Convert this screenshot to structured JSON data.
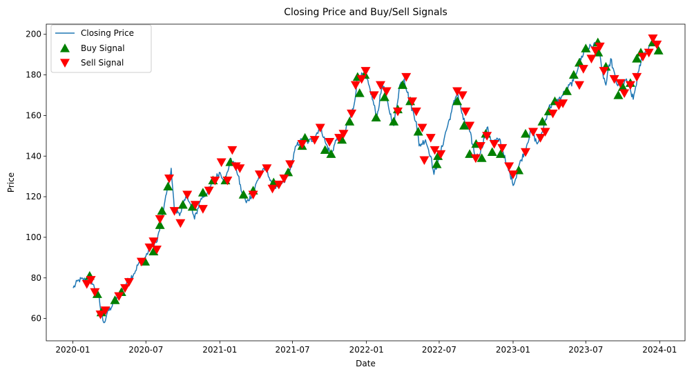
{
  "chart_data": {
    "type": "line",
    "title": "Closing Price and Buy/Sell Signals",
    "xlabel": "Date",
    "ylabel": "Price",
    "xlim": [
      "2019-10-27",
      "2024-03-04"
    ],
    "ylim": [
      49,
      205
    ],
    "x_ticks": [
      "2020-01",
      "2020-07",
      "2021-01",
      "2021-07",
      "2022-01",
      "2022-07",
      "2023-01",
      "2023-07",
      "2024-01"
    ],
    "y_ticks": [
      60,
      80,
      100,
      120,
      140,
      160,
      180,
      200
    ],
    "grid": false,
    "legend_position": "top-left",
    "colors": {
      "line": "#1f77b4",
      "buy": "#008000",
      "sell": "#ff0000"
    },
    "series": [
      {
        "name": "Closing Price",
        "kind": "line",
        "points": [
          [
            "2020-01-02",
            75
          ],
          [
            "2020-01-16",
            79
          ],
          [
            "2020-02-01",
            79
          ],
          [
            "2020-02-12",
            81
          ],
          [
            "2020-02-24",
            75
          ],
          [
            "2020-03-05",
            72
          ],
          [
            "2020-03-12",
            62
          ],
          [
            "2020-03-20",
            58
          ],
          [
            "2020-03-27",
            63
          ],
          [
            "2020-04-08",
            66
          ],
          [
            "2020-04-20",
            70
          ],
          [
            "2020-05-01",
            73
          ],
          [
            "2020-05-15",
            78
          ],
          [
            "2020-06-01",
            82
          ],
          [
            "2020-06-15",
            88
          ],
          [
            "2020-06-29",
            90
          ],
          [
            "2020-07-15",
            96
          ],
          [
            "2020-07-29",
            98
          ],
          [
            "2020-08-10",
            110
          ],
          [
            "2020-08-25",
            125
          ],
          [
            "2020-09-02",
            134
          ],
          [
            "2020-09-10",
            113
          ],
          [
            "2020-09-25",
            112
          ],
          [
            "2020-10-12",
            121
          ],
          [
            "2020-10-30",
            109
          ],
          [
            "2020-11-15",
            119
          ],
          [
            "2020-12-01",
            122
          ],
          [
            "2020-12-15",
            127
          ],
          [
            "2020-12-31",
            132
          ],
          [
            "2021-01-15",
            128
          ],
          [
            "2021-01-27",
            138
          ],
          [
            "2021-02-10",
            135
          ],
          [
            "2021-02-25",
            122
          ],
          [
            "2021-03-08",
            117
          ],
          [
            "2021-03-25",
            122
          ],
          [
            "2021-04-10",
            131
          ],
          [
            "2021-04-28",
            134
          ],
          [
            "2021-05-12",
            124
          ],
          [
            "2021-05-28",
            126
          ],
          [
            "2021-06-10",
            127
          ],
          [
            "2021-06-25",
            133
          ],
          [
            "2021-07-10",
            145
          ],
          [
            "2021-07-25",
            148
          ],
          [
            "2021-08-10",
            147
          ],
          [
            "2021-08-25",
            149
          ],
          [
            "2021-09-08",
            155
          ],
          [
            "2021-09-22",
            146
          ],
          [
            "2021-10-05",
            141
          ],
          [
            "2021-10-20",
            149
          ],
          [
            "2021-11-05",
            150
          ],
          [
            "2021-11-20",
            158
          ],
          [
            "2021-12-01",
            165
          ],
          [
            "2021-12-10",
            179
          ],
          [
            "2021-12-28",
            180
          ],
          [
            "2022-01-10",
            173
          ],
          [
            "2022-01-27",
            159
          ],
          [
            "2022-02-10",
            176
          ],
          [
            "2022-02-25",
            164
          ],
          [
            "2022-03-10",
            155
          ],
          [
            "2022-03-25",
            175
          ],
          [
            "2022-04-05",
            178
          ],
          [
            "2022-04-20",
            166
          ],
          [
            "2022-05-05",
            157
          ],
          [
            "2022-05-12",
            145
          ],
          [
            "2022-05-28",
            148
          ],
          [
            "2022-06-10",
            140
          ],
          [
            "2022-06-18",
            131
          ],
          [
            "2022-07-01",
            139
          ],
          [
            "2022-07-15",
            150
          ],
          [
            "2022-08-01",
            162
          ],
          [
            "2022-08-15",
            172
          ],
          [
            "2022-08-30",
            158
          ],
          [
            "2022-09-15",
            152
          ],
          [
            "2022-09-30",
            139
          ],
          [
            "2022-10-12",
            142
          ],
          [
            "2022-10-28",
            154
          ],
          [
            "2022-11-10",
            147
          ],
          [
            "2022-11-30",
            148
          ],
          [
            "2022-12-15",
            136
          ],
          [
            "2023-01-03",
            126
          ],
          [
            "2023-01-15",
            135
          ],
          [
            "2023-01-31",
            143
          ],
          [
            "2023-02-15",
            153
          ],
          [
            "2023-03-02",
            146
          ],
          [
            "2023-03-15",
            152
          ],
          [
            "2023-03-31",
            164
          ],
          [
            "2023-04-15",
            166
          ],
          [
            "2023-05-01",
            169
          ],
          [
            "2023-05-15",
            173
          ],
          [
            "2023-05-31",
            177
          ],
          [
            "2023-06-15",
            186
          ],
          [
            "2023-06-30",
            193
          ],
          [
            "2023-07-15",
            194
          ],
          [
            "2023-07-31",
            196
          ],
          [
            "2023-08-10",
            182
          ],
          [
            "2023-08-20",
            175
          ],
          [
            "2023-09-01",
            188
          ],
          [
            "2023-09-15",
            176
          ],
          [
            "2023-09-30",
            173
          ],
          [
            "2023-10-10",
            178
          ],
          [
            "2023-10-27",
            168
          ],
          [
            "2023-11-10",
            182
          ],
          [
            "2023-11-20",
            190
          ],
          [
            "2023-12-01",
            192
          ],
          [
            "2023-12-15",
            198
          ],
          [
            "2023-12-29",
            193
          ]
        ]
      },
      {
        "name": "Buy Signal",
        "kind": "marker-up",
        "points": [
          [
            "2020-02-12",
            81
          ],
          [
            "2020-03-02",
            72
          ],
          [
            "2020-03-12",
            63
          ],
          [
            "2020-04-15",
            69
          ],
          [
            "2020-05-01",
            73
          ],
          [
            "2020-06-29",
            88
          ],
          [
            "2020-07-20",
            93
          ],
          [
            "2020-08-05",
            106
          ],
          [
            "2020-08-10",
            113
          ],
          [
            "2020-08-25",
            125
          ],
          [
            "2020-10-01",
            116
          ],
          [
            "2020-10-25",
            115
          ],
          [
            "2020-11-20",
            122
          ],
          [
            "2020-12-15",
            128
          ],
          [
            "2021-01-15",
            128
          ],
          [
            "2021-01-27",
            137
          ],
          [
            "2021-03-01",
            121
          ],
          [
            "2021-03-25",
            123
          ],
          [
            "2021-05-15",
            127
          ],
          [
            "2021-06-20",
            132
          ],
          [
            "2021-07-25",
            145
          ],
          [
            "2021-08-01",
            149
          ],
          [
            "2021-09-20",
            143
          ],
          [
            "2021-10-05",
            141
          ],
          [
            "2021-11-01",
            148
          ],
          [
            "2021-11-20",
            157
          ],
          [
            "2021-12-10",
            179
          ],
          [
            "2021-12-15",
            171
          ],
          [
            "2021-12-28",
            180
          ],
          [
            "2022-01-25",
            159
          ],
          [
            "2022-02-15",
            169
          ],
          [
            "2022-03-10",
            157
          ],
          [
            "2022-03-20",
            163
          ],
          [
            "2022-04-01",
            175
          ],
          [
            "2022-04-20",
            167
          ],
          [
            "2022-05-10",
            152
          ],
          [
            "2022-06-25",
            136
          ],
          [
            "2022-06-28",
            140
          ],
          [
            "2022-08-15",
            167
          ],
          [
            "2022-09-01",
            155
          ],
          [
            "2022-09-15",
            141
          ],
          [
            "2022-10-01",
            146
          ],
          [
            "2022-10-15",
            139
          ],
          [
            "2022-10-25",
            151
          ],
          [
            "2022-11-10",
            142
          ],
          [
            "2022-12-01",
            141
          ],
          [
            "2023-01-15",
            133
          ],
          [
            "2023-02-01",
            151
          ],
          [
            "2023-03-15",
            157
          ],
          [
            "2023-03-31",
            162
          ],
          [
            "2023-04-15",
            167
          ],
          [
            "2023-05-15",
            172
          ],
          [
            "2023-06-01",
            180
          ],
          [
            "2023-06-15",
            186
          ],
          [
            "2023-07-01",
            193
          ],
          [
            "2023-07-31",
            196
          ],
          [
            "2023-08-01",
            191
          ],
          [
            "2023-08-20",
            184
          ],
          [
            "2023-09-20",
            170
          ],
          [
            "2023-10-01",
            174
          ],
          [
            "2023-10-20",
            176
          ],
          [
            "2023-11-05",
            188
          ],
          [
            "2023-11-15",
            191
          ],
          [
            "2023-12-15",
            196
          ],
          [
            "2023-12-29",
            192
          ]
        ]
      },
      {
        "name": "Sell Signal",
        "kind": "marker-down",
        "points": [
          [
            "2020-02-05",
            77
          ],
          [
            "2020-02-15",
            79
          ],
          [
            "2020-02-25",
            73
          ],
          [
            "2020-03-10",
            62
          ],
          [
            "2020-03-22",
            64
          ],
          [
            "2020-04-25",
            71
          ],
          [
            "2020-05-10",
            75
          ],
          [
            "2020-05-20",
            78
          ],
          [
            "2020-06-20",
            88
          ],
          [
            "2020-07-10",
            95
          ],
          [
            "2020-07-20",
            98
          ],
          [
            "2020-07-28",
            94
          ],
          [
            "2020-08-05",
            109
          ],
          [
            "2020-08-28",
            129
          ],
          [
            "2020-09-10",
            113
          ],
          [
            "2020-09-25",
            107
          ],
          [
            "2020-10-12",
            121
          ],
          [
            "2020-11-01",
            116
          ],
          [
            "2020-11-20",
            114
          ],
          [
            "2020-12-05",
            123
          ],
          [
            "2020-12-20",
            128
          ],
          [
            "2021-01-05",
            137
          ],
          [
            "2021-01-20",
            128
          ],
          [
            "2021-02-01",
            143
          ],
          [
            "2021-02-10",
            135
          ],
          [
            "2021-02-20",
            134
          ],
          [
            "2021-03-25",
            121
          ],
          [
            "2021-04-10",
            131
          ],
          [
            "2021-04-28",
            134
          ],
          [
            "2021-05-12",
            124
          ],
          [
            "2021-05-28",
            126
          ],
          [
            "2021-06-10",
            129
          ],
          [
            "2021-06-25",
            136
          ],
          [
            "2021-07-25",
            146
          ],
          [
            "2021-08-25",
            148
          ],
          [
            "2021-09-08",
            154
          ],
          [
            "2021-10-01",
            147
          ],
          [
            "2021-10-25",
            149
          ],
          [
            "2021-11-05",
            151
          ],
          [
            "2021-11-25",
            161
          ],
          [
            "2021-12-05",
            175
          ],
          [
            "2021-12-20",
            178
          ],
          [
            "2021-12-30",
            182
          ],
          [
            "2022-01-20",
            170
          ],
          [
            "2022-02-05",
            175
          ],
          [
            "2022-02-20",
            172
          ],
          [
            "2022-03-20",
            162
          ],
          [
            "2022-04-10",
            179
          ],
          [
            "2022-04-25",
            167
          ],
          [
            "2022-05-05",
            162
          ],
          [
            "2022-05-20",
            154
          ],
          [
            "2022-05-25",
            138
          ],
          [
            "2022-06-10",
            149
          ],
          [
            "2022-06-20",
            143
          ],
          [
            "2022-07-05",
            141
          ],
          [
            "2022-08-15",
            172
          ],
          [
            "2022-08-28",
            170
          ],
          [
            "2022-09-05",
            162
          ],
          [
            "2022-09-15",
            155
          ],
          [
            "2022-09-30",
            139
          ],
          [
            "2022-10-12",
            145
          ],
          [
            "2022-10-28",
            150
          ],
          [
            "2022-11-15",
            146
          ],
          [
            "2022-12-05",
            144
          ],
          [
            "2022-12-22",
            135
          ],
          [
            "2023-01-01",
            131
          ],
          [
            "2023-02-01",
            142
          ],
          [
            "2023-02-20",
            152
          ],
          [
            "2023-03-10",
            149
          ],
          [
            "2023-03-22",
            152
          ],
          [
            "2023-04-10",
            161
          ],
          [
            "2023-04-25",
            165
          ],
          [
            "2023-05-05",
            166
          ],
          [
            "2023-06-15",
            175
          ],
          [
            "2023-06-25",
            183
          ],
          [
            "2023-07-15",
            188
          ],
          [
            "2023-07-25",
            192
          ],
          [
            "2023-08-05",
            194
          ],
          [
            "2023-08-15",
            182
          ],
          [
            "2023-09-10",
            178
          ],
          [
            "2023-09-25",
            176
          ],
          [
            "2023-10-05",
            171
          ],
          [
            "2023-10-20",
            175
          ],
          [
            "2023-11-05",
            179
          ],
          [
            "2023-11-20",
            189
          ],
          [
            "2023-12-05",
            191
          ],
          [
            "2023-12-15",
            198
          ],
          [
            "2023-12-25",
            195
          ]
        ]
      }
    ]
  }
}
